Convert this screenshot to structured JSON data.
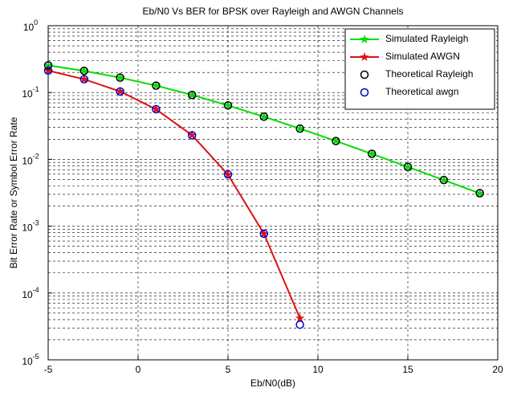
{
  "chart_data": {
    "type": "line",
    "title": "Eb/N0 Vs BER for BPSK over Rayleigh and AWGN Channels",
    "x_label": "Eb/N0(dB)",
    "y_label": "Bit Error Rate or Symbol Error Rate",
    "xlim": [
      -5,
      20
    ],
    "xticks": [
      -5,
      0,
      5,
      10,
      15,
      20
    ],
    "ylim": [
      1e-05,
      1
    ],
    "yticks": [
      {
        "value": 1e-05,
        "label": "10",
        "exponent": "-5"
      },
      {
        "value": 0.0001,
        "label": "10",
        "exponent": "-4"
      },
      {
        "value": 0.001,
        "label": "10",
        "exponent": "-3"
      },
      {
        "value": 0.01,
        "label": "10",
        "exponent": "-2"
      },
      {
        "value": 0.1,
        "label": "10",
        "exponent": "-1"
      },
      {
        "value": 1,
        "label": "10",
        "exponent": "0"
      }
    ],
    "log_y": true,
    "grid": true,
    "minor_grid": true,
    "legend": "upper right",
    "series": [
      {
        "name": "Simulated Rayleigh",
        "color": "#00dd00",
        "style": "line-star",
        "x": [
          -5,
          -3,
          -1,
          1,
          3,
          5,
          7,
          9,
          11,
          13,
          15,
          17,
          19
        ],
        "values": [
          0.255,
          0.211,
          0.167,
          0.127,
          0.092,
          0.064,
          0.0435,
          0.0288,
          0.0188,
          0.0121,
          0.0077,
          0.0049,
          0.0031
        ]
      },
      {
        "name": "Simulated AWGN",
        "color": "#dd1111",
        "style": "line-star",
        "x": [
          -5,
          -3,
          -1,
          1,
          3,
          5,
          7,
          9
        ],
        "values": [
          0.213,
          0.158,
          0.104,
          0.056,
          0.023,
          0.0059,
          0.00077,
          4.2e-05
        ]
      },
      {
        "name": "Theoretical Rayleigh",
        "color": "#000000",
        "style": "circle",
        "x": [
          -5,
          -3,
          -1,
          1,
          3,
          5,
          7,
          9,
          11,
          13,
          15,
          17,
          19
        ],
        "values": [
          0.255,
          0.211,
          0.1673,
          0.1267,
          0.0919,
          0.0642,
          0.0435,
          0.0288,
          0.0188,
          0.0121,
          0.00772,
          0.00491,
          0.00312
        ]
      },
      {
        "name": "Theoretical awgn",
        "color": "#0000cc",
        "style": "circle",
        "x": [
          -5,
          -3,
          -1,
          1,
          3,
          5,
          7,
          9
        ],
        "values": [
          0.2133,
          0.1584,
          0.1038,
          0.0563,
          0.0229,
          0.00595,
          0.000773,
          3.36e-05
        ]
      }
    ]
  }
}
